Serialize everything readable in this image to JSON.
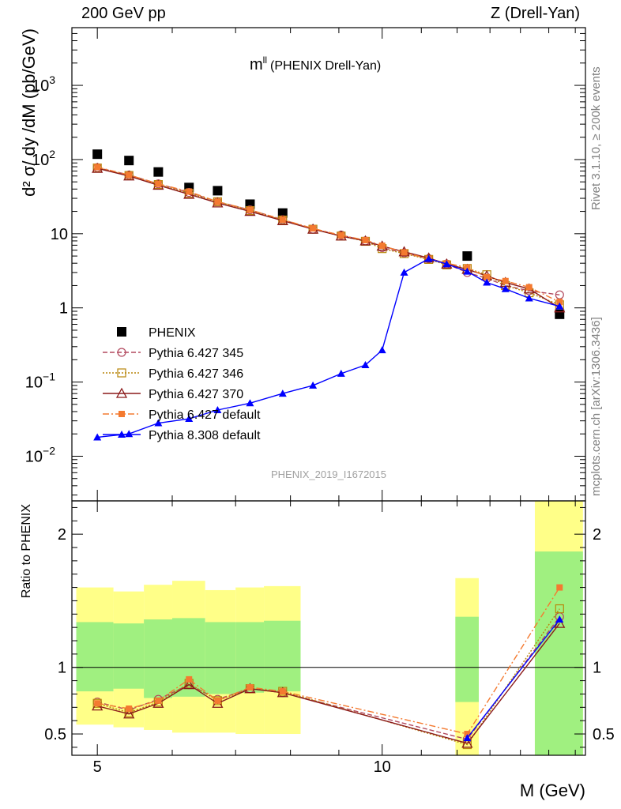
{
  "header": {
    "left": "200 GeV pp",
    "right": "Z (Drell-Yan)"
  },
  "side_labels": {
    "rivet": "Rivet 3.1.10, ≥ 200k events",
    "source": "mcplots.cern.ch [arXiv:1306.3436]"
  },
  "analysis_id": "PHENIX_2019_I1672015",
  "chart_data": [
    {
      "type": "scatter",
      "panel": "main",
      "title": "m",
      "title_superscript": "ll",
      "subtitle": "(PHENIX Drell-Yan)",
      "ylabel": "d² σ/ dy /dM (pb/GeV)",
      "yscale": "log",
      "ylim": [
        0.0025,
        6000
      ],
      "xlim": [
        4.7,
        16.4
      ],
      "xscale": "log",
      "ytick_labels": [
        {
          "value": 0.01,
          "base": "10",
          "exp": "−2"
        },
        {
          "value": 0.1,
          "base": "10",
          "exp": "−1"
        },
        {
          "value": 1,
          "base": "1",
          "exp": ""
        },
        {
          "value": 10,
          "base": "10",
          "exp": ""
        },
        {
          "value": 100,
          "base": "10",
          "exp": "2"
        },
        {
          "value": 1000,
          "base": "10",
          "exp": "3"
        }
      ],
      "legend_position": "bottom-left",
      "series": [
        {
          "name": "PHENIX",
          "color": "#000000",
          "marker": "square-filled",
          "line": "none",
          "x": [
            5.0,
            5.4,
            5.8,
            6.25,
            6.7,
            7.25,
            7.85,
            12.3,
            15.4
          ],
          "y": [
            118,
            97,
            68,
            42,
            38,
            25,
            19,
            5.0,
            0.82
          ]
        },
        {
          "name": "Pythia 6.427 345",
          "color": "#b2495e",
          "marker": "circle-open",
          "line": "dashed",
          "x": [
            5.0,
            5.4,
            5.8,
            6.25,
            6.7,
            7.25,
            7.85,
            8.45,
            9.05,
            9.6,
            10.0,
            10.55,
            11.2,
            11.7,
            12.3,
            12.9,
            13.5,
            14.3,
            15.4
          ],
          "y": [
            78,
            62,
            47,
            36,
            27,
            21,
            15.5,
            11.5,
            9.6,
            8.0,
            6.5,
            5.5,
            4.6,
            3.9,
            3.0,
            2.5,
            2.0,
            1.7,
            1.5
          ]
        },
        {
          "name": "Pythia 6.427 346",
          "color": "#b8860b",
          "marker": "square-open",
          "line": "dotted",
          "x": [
            5.0,
            5.4,
            5.8,
            6.25,
            6.7,
            7.25,
            7.85,
            8.45,
            9.05,
            9.6,
            10.0,
            10.55,
            11.2,
            11.7,
            12.3,
            12.9,
            13.5,
            14.3,
            15.4
          ],
          "y": [
            77,
            61,
            46,
            35,
            27,
            20.5,
            15.3,
            11.5,
            9.3,
            7.9,
            6.3,
            5.4,
            4.5,
            3.8,
            3.4,
            2.8,
            2.0,
            1.6,
            1.1
          ]
        },
        {
          "name": "Pythia 6.427 370",
          "color": "#8b1a1a",
          "marker": "triangle-open",
          "line": "solid",
          "x": [
            5.0,
            5.4,
            5.8,
            6.25,
            6.7,
            7.25,
            7.85,
            8.45,
            9.05,
            9.6,
            10.0,
            10.55,
            11.2,
            11.7,
            12.3,
            12.9,
            13.5,
            14.3,
            15.4
          ],
          "y": [
            76,
            60,
            45,
            34,
            26,
            20,
            15,
            11.5,
            9.3,
            8.0,
            6.8,
            5.7,
            4.7,
            3.9,
            3.3,
            2.7,
            2.2,
            1.8,
            1.0
          ]
        },
        {
          "name": "Pythia 6.427 default",
          "color": "#f47a30",
          "marker": "square-filled-small",
          "line": "dashdot",
          "x": [
            5.0,
            5.4,
            5.8,
            6.25,
            6.7,
            7.25,
            7.85,
            8.45,
            9.05,
            9.6,
            10.0,
            10.55,
            11.2,
            11.7,
            12.3,
            12.9,
            13.5,
            14.3,
            15.4
          ],
          "y": [
            79,
            62,
            47,
            37,
            27,
            21,
            15.5,
            11.8,
            9.5,
            8.2,
            6.9,
            5.6,
            4.6,
            4.0,
            3.5,
            2.6,
            2.3,
            1.9,
            1.2
          ]
        },
        {
          "name": "Pythia 8.308 default",
          "color": "#0000ff",
          "marker": "triangle-filled",
          "line": "solid",
          "x": [
            5.0,
            5.4,
            5.8,
            6.25,
            6.7,
            7.25,
            7.85,
            8.45,
            9.05,
            9.6,
            10.0,
            10.55,
            11.2,
            11.7,
            12.3,
            12.9,
            13.5,
            14.3,
            15.4
          ],
          "y": [
            0.018,
            0.02,
            0.028,
            0.032,
            0.042,
            0.052,
            0.07,
            0.09,
            0.13,
            0.17,
            0.27,
            3.0,
            4.6,
            3.9,
            3.1,
            2.2,
            1.8,
            1.35,
            1.05
          ]
        }
      ]
    },
    {
      "type": "scatter",
      "panel": "ratio",
      "ylabel": "Ratio to PHENIX",
      "xlabel": "M (GeV)",
      "ylim": [
        0.34,
        2.25
      ],
      "xlim": [
        4.7,
        16.4
      ],
      "xscale": "log",
      "xtick_labels": [
        {
          "value": 5,
          "label": "5"
        },
        {
          "value": 10,
          "label": "10"
        }
      ],
      "ytick_labels": [
        {
          "value": 0.5,
          "label": "0.5"
        },
        {
          "value": 1,
          "label": "1"
        },
        {
          "value": 2,
          "label": "2"
        }
      ],
      "reference_line": 1,
      "uncertainty_bands": {
        "bins": [
          {
            "x": [
              4.75,
              5.2
            ],
            "inner": [
              0.82,
              1.34
            ],
            "outer": [
              0.57,
              1.6
            ]
          },
          {
            "x": [
              5.2,
              5.6
            ],
            "inner": [
              0.84,
              1.33
            ],
            "outer": [
              0.55,
              1.57
            ]
          },
          {
            "x": [
              5.6,
              6.0
            ],
            "inner": [
              0.77,
              1.36
            ],
            "outer": [
              0.53,
              1.62
            ]
          },
          {
            "x": [
              6.0,
              6.5
            ],
            "inner": [
              0.78,
              1.37
            ],
            "outer": [
              0.51,
              1.65
            ]
          },
          {
            "x": [
              6.5,
              7.0
            ],
            "inner": [
              0.8,
              1.34
            ],
            "outer": [
              0.51,
              1.58
            ]
          },
          {
            "x": [
              7.0,
              7.5
            ],
            "inner": [
              0.81,
              1.34
            ],
            "outer": [
              0.5,
              1.6
            ]
          },
          {
            "x": [
              7.5,
              8.2
            ],
            "inner": [
              0.82,
              1.35
            ],
            "outer": [
              0.5,
              1.61
            ]
          },
          {
            "x": [
              11.95,
              12.65
            ],
            "inner": [
              0.74,
              1.38
            ],
            "outer": [
              0.34,
              1.67
            ]
          },
          {
            "x": [
              14.5,
              16.3
            ],
            "inner": [
              0.34,
              1.87
            ],
            "outer": [
              0.34,
              2.25
            ]
          }
        ],
        "inner_color": "#a0f080",
        "outer_color": "#ffff88"
      },
      "series": [
        {
          "name": "Pythia 6.427 345",
          "color": "#b2495e",
          "marker": "circle-open",
          "line": "dashed",
          "x": [
            5.0,
            5.4,
            5.8,
            6.25,
            6.7,
            7.25,
            7.85,
            12.3,
            15.4
          ],
          "y": [
            0.74,
            0.68,
            0.76,
            0.87,
            0.76,
            0.84,
            0.81,
            0.46,
            1.38
          ]
        },
        {
          "name": "Pythia 6.427 346",
          "color": "#b8860b",
          "marker": "square-open",
          "line": "dotted",
          "x": [
            5.0,
            5.4,
            5.8,
            6.25,
            6.7,
            7.25,
            7.85,
            12.3,
            15.4
          ],
          "y": [
            0.73,
            0.66,
            0.74,
            0.88,
            0.75,
            0.84,
            0.82,
            0.42,
            1.44
          ]
        },
        {
          "name": "Pythia 6.427 370",
          "color": "#8b1a1a",
          "marker": "triangle-open",
          "line": "solid",
          "x": [
            5.0,
            5.4,
            5.8,
            6.25,
            6.7,
            7.25,
            7.85,
            12.3,
            15.4
          ],
          "y": [
            0.71,
            0.65,
            0.73,
            0.87,
            0.73,
            0.84,
            0.81,
            0.43,
            1.33
          ]
        },
        {
          "name": "Pythia 6.427 default",
          "color": "#f47a30",
          "marker": "square-filled-small",
          "line": "dashdot",
          "x": [
            5.0,
            5.4,
            5.8,
            6.25,
            6.7,
            7.25,
            7.85,
            12.3,
            15.4
          ],
          "y": [
            0.73,
            0.69,
            0.75,
            0.91,
            0.75,
            0.85,
            0.82,
            0.5,
            1.6
          ]
        },
        {
          "name": "Pythia 8.308 default",
          "color": "#0000ff",
          "marker": "triangle-filled",
          "line": "solid",
          "x": [
            12.3,
            15.4
          ],
          "y": [
            0.47,
            1.36
          ]
        }
      ]
    }
  ]
}
